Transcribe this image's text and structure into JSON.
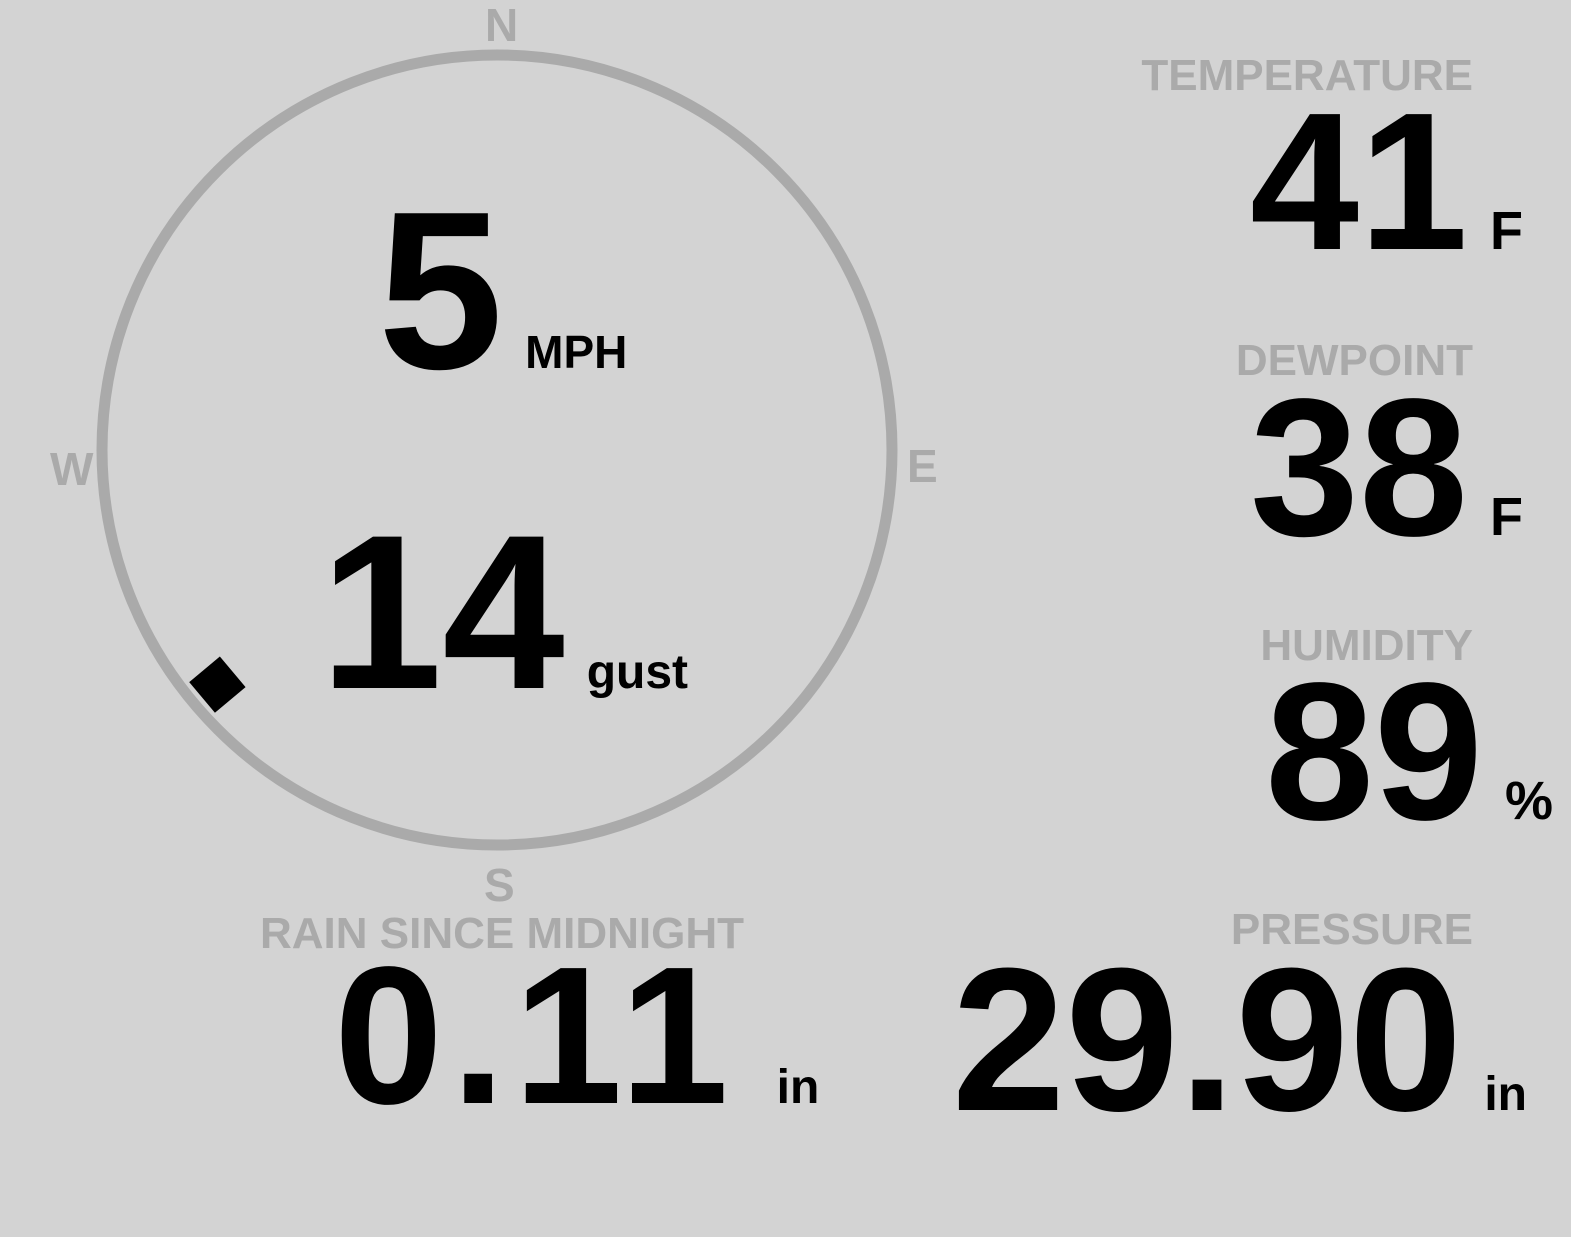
{
  "wind": {
    "speed": "5",
    "speed_unit": "MPH",
    "gust": "14",
    "gust_label": "gust",
    "direction_deg": 230,
    "cardinals": {
      "n": "N",
      "e": "E",
      "s": "S",
      "w": "W"
    }
  },
  "temperature": {
    "label": "TEMPERATURE",
    "value": "41",
    "unit": "F"
  },
  "dewpoint": {
    "label": "DEWPOINT",
    "value": "38",
    "unit": "F"
  },
  "humidity": {
    "label": "HUMIDITY",
    "value": "89",
    "unit": "%"
  },
  "rain": {
    "label": "RAIN SINCE MIDNIGHT",
    "value": "0.11",
    "unit": "in"
  },
  "pressure": {
    "label": "PRESSURE",
    "value": "29.90",
    "unit": "in"
  },
  "colors": {
    "background": "#d3d3d3",
    "dial": "#aaaaaa",
    "label": "#aaaaaa",
    "value": "#000000"
  }
}
